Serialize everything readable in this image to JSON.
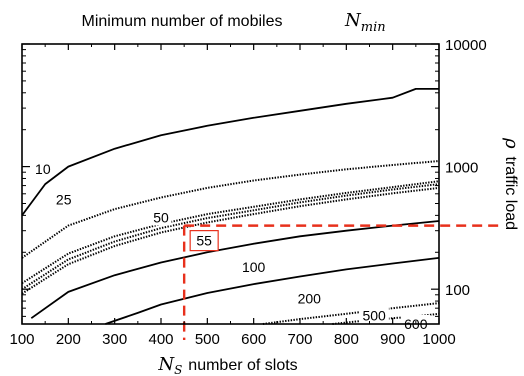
{
  "chart_data": {
    "type": "contour",
    "title_prefix": "Minimum number of mobiles",
    "title_symbol": "N",
    "title_subscript": "min",
    "xlabel_symbol": "N",
    "xlabel_subscript": "S",
    "xlabel_text": "number of slots",
    "ylabel_symbol": "ρ",
    "ylabel_text": "traffic load",
    "x": [
      100,
      1000
    ],
    "yscale": "log",
    "ylim": [
      52,
      10000
    ],
    "grid": false,
    "xticks": [
      "100",
      "200",
      "300",
      "400",
      "500",
      "600",
      "700",
      "800",
      "900",
      "1000"
    ],
    "yticks": [
      {
        "value": 100,
        "label": "100"
      },
      {
        "value": 1000,
        "label": "1000"
      },
      {
        "value": 10000,
        "label": "10000"
      }
    ],
    "contours": [
      {
        "level": "10",
        "style": "solid",
        "x": [
          100,
          150,
          200,
          300,
          400,
          500,
          600,
          700,
          800,
          900,
          950,
          1000
        ],
        "y": [
          400,
          720,
          1000,
          1400,
          1800,
          2150,
          2500,
          2850,
          3250,
          3650,
          4300,
          4300
        ]
      },
      {
        "level": "25",
        "style": "dotted",
        "x": [
          100,
          200,
          300,
          400,
          500,
          600,
          700,
          800,
          900,
          1000
        ],
        "y": [
          180,
          330,
          450,
          560,
          670,
          770,
          860,
          950,
          1030,
          1110
        ]
      },
      {
        "level": "50",
        "style": "dotted",
        "x": [
          100,
          200,
          300,
          400,
          500,
          600,
          700,
          800,
          900,
          1000
        ],
        "y": [
          112,
          195,
          270,
          340,
          410,
          470,
          540,
          610,
          680,
          760
        ]
      },
      {
        "level": "50",
        "style": "dotted",
        "x": [
          100,
          200,
          300,
          400,
          500,
          600,
          700,
          800,
          900,
          1000
        ],
        "y": [
          100,
          175,
          245,
          315,
          380,
          440,
          510,
          580,
          650,
          720
        ]
      },
      {
        "level": "55",
        "style": "dotted",
        "x": [
          100,
          200,
          300,
          400,
          500,
          600,
          700,
          800,
          900,
          1000
        ],
        "y": [
          92,
          160,
          225,
          290,
          350,
          410,
          475,
          540,
          605,
          670
        ]
      },
      {
        "level": "100",
        "style": "solid",
        "x": [
          120,
          200,
          300,
          400,
          500,
          600,
          700,
          800,
          900,
          1000
        ],
        "y": [
          58,
          95,
          130,
          165,
          200,
          235,
          270,
          300,
          330,
          360
        ]
      },
      {
        "level": "200",
        "style": "solid",
        "x": [
          280,
          350,
          400,
          500,
          600,
          700,
          800,
          900,
          1000
        ],
        "y": [
          52,
          64,
          75,
          93,
          110,
          127,
          145,
          162,
          180
        ]
      },
      {
        "level": "500",
        "style": "dotted",
        "x": [
          620,
          700,
          800,
          900,
          1000
        ],
        "y": [
          52,
          57,
          63,
          70,
          77
        ]
      },
      {
        "level": "600",
        "style": "dotted",
        "x": [
          770,
          850,
          900,
          950,
          1000
        ],
        "y": [
          52,
          56,
          58,
          60,
          63
        ]
      }
    ],
    "contour_labels": [
      {
        "text": "10",
        "x": 145,
        "y": 960
      },
      {
        "text": "25",
        "x": 190,
        "y": 540
      },
      {
        "text": "50",
        "x": 400,
        "y": 385
      },
      {
        "text": "55",
        "x": 490,
        "y": 252
      },
      {
        "text": "100",
        "x": 600,
        "y": 152
      },
      {
        "text": "200",
        "x": 720,
        "y": 84
      },
      {
        "text": "500",
        "x": 860,
        "y": 61
      },
      {
        "text": "600",
        "x": 950,
        "y": 52
      }
    ],
    "highlight": {
      "x": 450,
      "y": 330,
      "color": "#e8301c",
      "label": "55"
    }
  }
}
